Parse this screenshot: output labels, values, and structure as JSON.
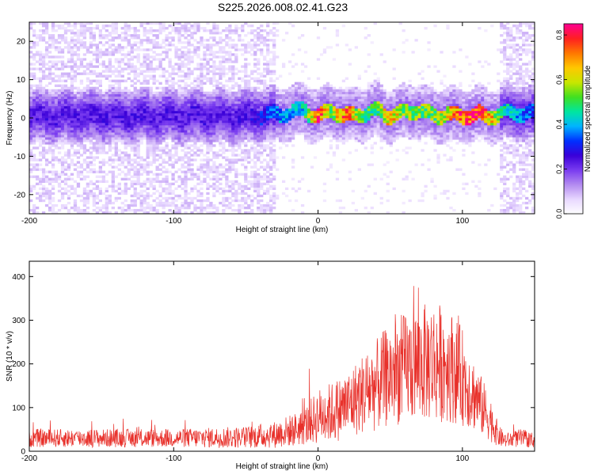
{
  "title": "S225.2026.008.02.41.G23",
  "colors": {
    "snr_line": "#e8302a",
    "spectrogram_core": "#3a00d8",
    "spectrogram_halo": "#b48cf0"
  },
  "chart_data": [
    {
      "type": "heatmap",
      "name": "spectrogram",
      "xlabel": "Height of straight line (km)",
      "ylabel": "Frequency (Hz)",
      "xlim": [
        -200,
        150
      ],
      "ylim": [
        -25,
        25
      ],
      "xticks": [
        -200,
        -100,
        0,
        100
      ],
      "xtick_labels": [
        "-200",
        "-100",
        "0",
        "100"
      ],
      "yticks": [
        -20,
        -10,
        0,
        10,
        20
      ],
      "ytick_labels": [
        "-20",
        "-10",
        "0",
        "10",
        "20"
      ],
      "colorbar": {
        "label": "Normalized spectral amplitude",
        "range": [
          0.0,
          0.85
        ],
        "ticks": [
          0.0,
          0.2,
          0.4,
          0.6,
          0.8
        ],
        "tick_labels": [
          "0.0",
          "0.2",
          "0.4",
          "0.6",
          "0.8"
        ],
        "colormap": [
          "#ffffff",
          "#e8d8ff",
          "#b48cf0",
          "#7a3cf0",
          "#3a00d8",
          "#0030ff",
          "#00b4ff",
          "#00e6a0",
          "#40e020",
          "#c8e600",
          "#ffc800",
          "#ff7800",
          "#ff2020",
          "#ff0090"
        ]
      },
      "ridge": {
        "description_points_x": [
          -200,
          -150,
          -100,
          -50,
          -25,
          -10,
          0,
          10,
          20,
          30,
          40,
          50,
          60,
          70,
          80,
          90,
          100,
          110,
          120,
          130,
          150
        ],
        "center_freq_hz": [
          0.5,
          0.5,
          0.5,
          0.5,
          1.0,
          2.0,
          0.5,
          2.0,
          0.5,
          1.0,
          2.0,
          0.5,
          1.5,
          2.0,
          0.5,
          1.0,
          0.5,
          1.0,
          0.5,
          1.5,
          1.0
        ],
        "peak_amplitude": [
          0.25,
          0.25,
          0.25,
          0.25,
          0.4,
          0.45,
          0.85,
          0.6,
          0.8,
          0.55,
          0.5,
          0.75,
          0.55,
          0.6,
          0.55,
          0.7,
          0.8,
          0.85,
          0.7,
          0.45,
          0.35
        ]
      }
    },
    {
      "type": "line",
      "name": "snr",
      "xlabel": "Height of straight line (km)",
      "ylabel": "SNR (10 * v/v)",
      "xlim": [
        -200,
        150
      ],
      "ylim": [
        0,
        435
      ],
      "xticks": [
        -200,
        -100,
        0,
        100
      ],
      "xtick_labels": [
        "-200",
        "-100",
        "0",
        "100"
      ],
      "yticks": [
        0,
        100,
        200,
        300,
        400
      ],
      "ytick_labels": [
        "0",
        "100",
        "200",
        "300",
        "400"
      ],
      "envelope_x": [
        -200,
        -150,
        -100,
        -50,
        -30,
        -10,
        0,
        10,
        20,
        30,
        40,
        50,
        60,
        70,
        80,
        90,
        100,
        110,
        120,
        125,
        130,
        140,
        150
      ],
      "envelope_mean": [
        30,
        30,
        30,
        32,
        38,
        55,
        80,
        90,
        105,
        130,
        150,
        175,
        190,
        200,
        205,
        200,
        170,
        120,
        70,
        35,
        25,
        30,
        25
      ],
      "envelope_spread": [
        15,
        15,
        15,
        18,
        22,
        30,
        45,
        50,
        55,
        65,
        75,
        85,
        90,
        95,
        100,
        95,
        80,
        55,
        35,
        18,
        12,
        15,
        12
      ]
    }
  ]
}
